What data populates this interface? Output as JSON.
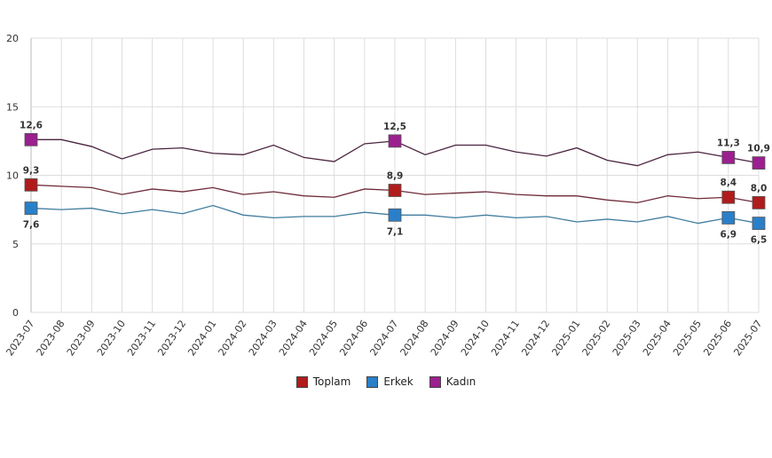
{
  "chart_data": {
    "type": "line",
    "title": "",
    "xlabel": "",
    "ylabel": "",
    "ylim": [
      0,
      20
    ],
    "yticks": [
      0,
      5,
      10,
      15,
      20
    ],
    "grid": true,
    "legend_position": "bottom",
    "x": [
      "2023-07",
      "2023-08",
      "2023-09",
      "2023-10",
      "2023-11",
      "2023-12",
      "2024-01",
      "2024-02",
      "2024-03",
      "2024-04",
      "2024-05",
      "2024-06",
      "2024-07",
      "2024-08",
      "2024-09",
      "2024-10",
      "2024-11",
      "2024-12",
      "2025-01",
      "2025-02",
      "2025-03",
      "2025-04",
      "2025-05",
      "2025-06",
      "2025-07"
    ],
    "labeled_points": [
      0,
      12,
      23,
      24
    ],
    "series": [
      {
        "name": "Toplam",
        "color": "#b01c1c",
        "line_color": "#6e2b3a",
        "values": [
          9.3,
          9.2,
          9.1,
          8.6,
          9.0,
          8.8,
          9.1,
          8.6,
          8.8,
          8.5,
          8.4,
          9.0,
          8.9,
          8.6,
          8.7,
          8.8,
          8.6,
          8.5,
          8.5,
          8.2,
          8.0,
          8.5,
          8.3,
          8.4,
          8.0
        ],
        "labels": [
          "9,3",
          "8,9",
          "8,4",
          "8,0"
        ],
        "label_side": "above"
      },
      {
        "name": "Erkek",
        "color": "#2a7fc9",
        "line_color": "#3f7d9e",
        "values": [
          7.6,
          7.5,
          7.6,
          7.2,
          7.5,
          7.2,
          7.8,
          7.1,
          6.9,
          7.0,
          7.0,
          7.3,
          7.1,
          7.1,
          6.9,
          7.1,
          6.9,
          7.0,
          6.6,
          6.8,
          6.6,
          7.0,
          6.5,
          6.9,
          6.5
        ],
        "labels": [
          "7,6",
          "7,1",
          "6,9",
          "6,5"
        ],
        "label_side": "below"
      },
      {
        "name": "Kadın",
        "color": "#9b1f8f",
        "line_color": "#4a2340",
        "values": [
          12.6,
          12.6,
          12.1,
          11.2,
          11.9,
          12.0,
          11.6,
          11.5,
          12.2,
          11.3,
          11.0,
          12.3,
          12.5,
          11.5,
          12.2,
          12.2,
          11.7,
          11.4,
          12.0,
          11.1,
          10.7,
          11.5,
          11.7,
          11.3,
          10.9
        ],
        "labels": [
          "12,6",
          "12,5",
          "11,3",
          "10,9"
        ],
        "label_side": "above"
      }
    ]
  }
}
